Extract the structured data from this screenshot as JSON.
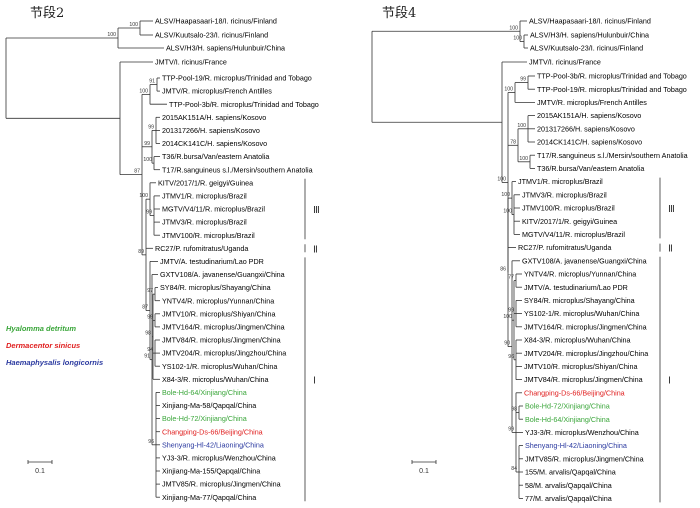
{
  "left_panel": {
    "title": "节段2",
    "scale_label": "0.1",
    "taxa": [
      {
        "label": "ALSV/Haapasaari-18/I. ricinus/Finland",
        "color": "#000000"
      },
      {
        "label": "ALSV/Kuutsalo-23/I. ricinus/Finland",
        "color": "#000000"
      },
      {
        "label": "ALSV/H3/H. sapiens/Hulunbuir/China",
        "color": "#000000"
      },
      {
        "label": "JMTV/I. ricinus/France",
        "color": "#000000"
      },
      {
        "label": "TTP-Pool-19/R. microplus/Trinidad and Tobago",
        "color": "#000000"
      },
      {
        "label": "JMTV/R. microplus/French Antilles",
        "color": "#000000"
      },
      {
        "label": "TTP-Pool-3b/R. microplus/Trinidad and Tobago",
        "color": "#000000"
      },
      {
        "label": "2015AK151A/H. sapiens/Kosovo",
        "color": "#000000"
      },
      {
        "label": "201317266/H. sapiens/Kosovo",
        "color": "#000000"
      },
      {
        "label": "2014CK141C/H. sapiens/Kosovo",
        "color": "#000000"
      },
      {
        "label": "T36/R.bursa/Van/eastern Anatolia",
        "color": "#000000"
      },
      {
        "label": "T17/R.sanguineus s.l./Mersin/southern Anatolia",
        "color": "#000000"
      },
      {
        "label": "KITV/2017/1/R. geigyi/Guinea",
        "color": "#000000"
      },
      {
        "label": "JTMV1/R. microplus/Brazil",
        "color": "#000000"
      },
      {
        "label": "MGTV/V4/11/R. microplus/Brazil",
        "color": "#000000"
      },
      {
        "label": "JTMV3/R. microplus/Brazil",
        "color": "#000000"
      },
      {
        "label": "JTMV100/R. microplus/Brazil",
        "color": "#000000"
      },
      {
        "label": "RC27/P. rufomitratus/Uganda",
        "color": "#000000"
      },
      {
        "label": "JMTV/A. testudinarium/Lao PDR",
        "color": "#000000"
      },
      {
        "label": "GXTV108/A. javanense/Guangxi/China",
        "color": "#000000"
      },
      {
        "label": "SY84/R. microplus/Shayang/China",
        "color": "#000000"
      },
      {
        "label": "YNTV4/R. microplus/Yunnan/China",
        "color": "#000000"
      },
      {
        "label": "JMTV10/R. microplus/Shiyan/China",
        "color": "#000000"
      },
      {
        "label": "JMTV164/R. microplus/Jingmen/China",
        "color": "#000000"
      },
      {
        "label": "JMTV84/R. microplus/Jingmen/China",
        "color": "#000000"
      },
      {
        "label": "JMTV204/R. microplus/Jingzhou/China",
        "color": "#000000"
      },
      {
        "label": "YS102-1/R. microplus/Wuhan/China",
        "color": "#000000"
      },
      {
        "label": "X84-3/R. microplus/Wuhan/China",
        "color": "#000000"
      },
      {
        "label": "Bole-Hd-64/Xinjiang/China",
        "color": "#3aa63a"
      },
      {
        "label": "Xinjiang-Ma-58/Qapqal/China",
        "color": "#000000"
      },
      {
        "label": "Bole-Hd-72/Xinjiang/China",
        "color": "#3aa63a"
      },
      {
        "label": "Changping-Ds-66/Beijing/China",
        "color": "#e02020"
      },
      {
        "label": "Shenyang-Hl-42/Liaoning/China",
        "color": "#2b3aa0"
      },
      {
        "label": "YJ3-3/R. microplus/Wenzhou/China",
        "color": "#000000"
      },
      {
        "label": "Xinjiang-Ma-155/Qapqal/China",
        "color": "#000000"
      },
      {
        "label": "JMTV85/R. microplus/Jingmen/China",
        "color": "#000000"
      },
      {
        "label": "Xinjiang-Ma-77/Qapqal/China",
        "color": "#000000"
      }
    ],
    "bootstrap": [
      "100",
      "100",
      "100",
      "87",
      "99",
      "99",
      "100",
      "100",
      "99",
      "87",
      "89",
      "91",
      "98",
      "97",
      "99",
      "94",
      "77",
      "96",
      "85",
      "96"
    ],
    "clades": [
      {
        "label": "Ⅲ"
      },
      {
        "label": "Ⅱ"
      },
      {
        "label": "Ⅰ"
      }
    ]
  },
  "right_panel": {
    "title": "节段4",
    "scale_label": "0.1",
    "taxa": [
      {
        "label": "ALSV/Haapasaari-18/I. ricinus/Finland",
        "color": "#000000"
      },
      {
        "label": "ALSV/H3/H. sapiens/Hulunbuir/China",
        "color": "#000000"
      },
      {
        "label": "ALSV/Kuutsalo-23/I. ricinus/Finland",
        "color": "#000000"
      },
      {
        "label": "JMTV/I. ricinus/France",
        "color": "#000000"
      },
      {
        "label": "TTP-Pool-3b/R. microplus/Trinidad and Tobago",
        "color": "#000000"
      },
      {
        "label": "TTP-Pool-19/R. microplus/Trinidad and Tobago",
        "color": "#000000"
      },
      {
        "label": "JMTV/R. microplus/French Antilles",
        "color": "#000000"
      },
      {
        "label": "2015AK151A/H. sapiens/Kosovo",
        "color": "#000000"
      },
      {
        "label": "201317266/H. sapiens/Kosovo",
        "color": "#000000"
      },
      {
        "label": "2014CK141C/H. sapiens/Kosovo",
        "color": "#000000"
      },
      {
        "label": "T17/R.sanguineus s.l./Mersin/southern Anatolia",
        "color": "#000000"
      },
      {
        "label": "T36/R.bursa/Van/eastern Anatolia",
        "color": "#000000"
      },
      {
        "label": "JTMV1/R. microplus/Brazil",
        "color": "#000000"
      },
      {
        "label": "JTMV3/R. microplus/Brazil",
        "color": "#000000"
      },
      {
        "label": "JTMV100/R. microplus/Brazil",
        "color": "#000000"
      },
      {
        "label": "KITV/2017/1/R. geigyi/Guinea",
        "color": "#000000"
      },
      {
        "label": "MGTV/V4/11/R. microplus/Brazil",
        "color": "#000000"
      },
      {
        "label": "RC27/P. rufomitratus/Uganda",
        "color": "#000000"
      },
      {
        "label": "GXTV108/A. javanense/Guangxi/China",
        "color": "#000000"
      },
      {
        "label": "YNTV4/R. microplus/Yunnan/China",
        "color": "#000000"
      },
      {
        "label": "JMTV/A. testudinarium/Lao PDR",
        "color": "#000000"
      },
      {
        "label": "SY84/R. microplus/Shayang/China",
        "color": "#000000"
      },
      {
        "label": "YS102-1/R. microplus/Wuhan/China",
        "color": "#000000"
      },
      {
        "label": "JMTV164/R. microplus/Jingmen/China",
        "color": "#000000"
      },
      {
        "label": "X84-3/R. microplus/Wuhan/China",
        "color": "#000000"
      },
      {
        "label": "JMTV204/R. microplus/Jingzhou/China",
        "color": "#000000"
      },
      {
        "label": "JMTV10/R. microplus/Shiyan/China",
        "color": "#000000"
      },
      {
        "label": "JMTV84/R. microplus/Jingmen/China",
        "color": "#000000"
      },
      {
        "label": "Changping-Ds-66/Beijing/China",
        "color": "#e02020"
      },
      {
        "label": "Bole-Hd-72/Xinjiang/China",
        "color": "#3aa63a"
      },
      {
        "label": "Bole-Hd-64/Xinjiang/China",
        "color": "#3aa63a"
      },
      {
        "label": "YJ3-3/R. microplus/Wenzhou/China",
        "color": "#000000"
      },
      {
        "label": "Shenyang-Hl-42/Liaoning/China",
        "color": "#2b3aa0"
      },
      {
        "label": "JMTV85/R. microplus/Jingmen/China",
        "color": "#000000"
      },
      {
        "label": "155/M. arvalis/Qapqal/China",
        "color": "#000000"
      },
      {
        "label": "58/M. arvalis/Qapqal/China",
        "color": "#000000"
      },
      {
        "label": "77/M. arvalis/Qapqal/China",
        "color": "#000000"
      }
    ],
    "bootstrap": [
      "100",
      "100",
      "100",
      "100",
      "99",
      "78",
      "100",
      "100",
      "100",
      "100",
      "86",
      "90",
      "100",
      "77",
      "99",
      "96",
      "95",
      "99",
      "98",
      "84"
    ],
    "clades": [
      {
        "label": "Ⅲ"
      },
      {
        "label": "Ⅱ"
      },
      {
        "label": "Ⅰ"
      }
    ]
  },
  "legend": [
    {
      "label": "Hyalomma detritum",
      "color": "#3aa63a"
    },
    {
      "label": "Dermacentor sinicus",
      "color": "#e02020"
    },
    {
      "label": "Haemaphysalis longicornis",
      "color": "#2b3aa0"
    }
  ]
}
